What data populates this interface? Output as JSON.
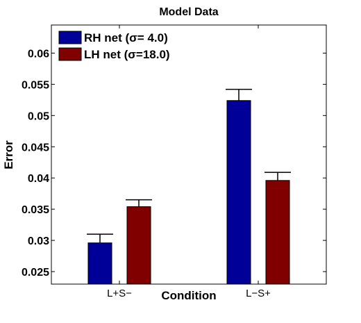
{
  "chart_data": {
    "type": "bar",
    "title": "Model Data",
    "xlabel": "Condition",
    "ylabel": "Error",
    "categories": [
      "L+S−",
      "L−S+"
    ],
    "series": [
      {
        "name": "RH net (σ= 4.0)",
        "color": "#000099",
        "values": [
          0.0296,
          0.0524
        ],
        "errors": [
          0.0014,
          0.0018
        ]
      },
      {
        "name": "LH net (σ=18.0)",
        "color": "#800000",
        "values": [
          0.0354,
          0.0396
        ],
        "errors": [
          0.0011,
          0.0013
        ]
      }
    ],
    "ylim": [
      0.023,
      0.0645
    ],
    "yticks": [
      0.025,
      0.03,
      0.035,
      0.04,
      0.045,
      0.05,
      0.055,
      0.06
    ],
    "ytick_labels": [
      "0.025",
      "0.03",
      "0.035",
      "0.04",
      "0.045",
      "0.05",
      "0.055",
      "0.06"
    ],
    "legend_position": "top-left",
    "grid": false
  }
}
